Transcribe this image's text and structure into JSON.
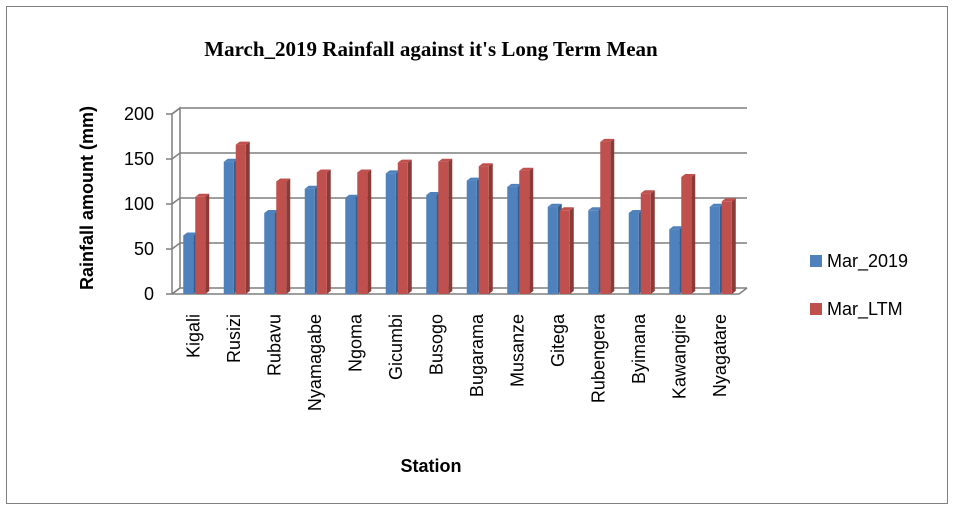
{
  "chart_data": {
    "type": "bar",
    "title": "March_2019 Rainfall against it's Long Term Mean",
    "xlabel": "Station",
    "ylabel": "Rainfall amount (mm)",
    "ylim": [
      0,
      200
    ],
    "yticks": [
      0,
      50,
      100,
      150,
      200
    ],
    "grid": true,
    "legend_position": "right",
    "categories": [
      "Kigali",
      "Rusizi",
      "Rubavu",
      "Nyamagabe",
      "Ngoma",
      "Gicumbi",
      "Busogo",
      "Bugarama",
      "Musanze",
      "Gitega",
      "Rubengera",
      "Byimana",
      "Kawangire",
      "Nyagatare"
    ],
    "series": [
      {
        "name": "Mar_2019",
        "color": "#4f81bd",
        "values": [
          65,
          147,
          90,
          117,
          107,
          134,
          110,
          126,
          119,
          97,
          93,
          90,
          72,
          97
        ]
      },
      {
        "name": "Mar_LTM",
        "color": "#c0504d",
        "values": [
          108,
          166,
          125,
          135,
          135,
          146,
          147,
          142,
          137,
          93,
          169,
          112,
          130,
          103
        ]
      }
    ]
  }
}
